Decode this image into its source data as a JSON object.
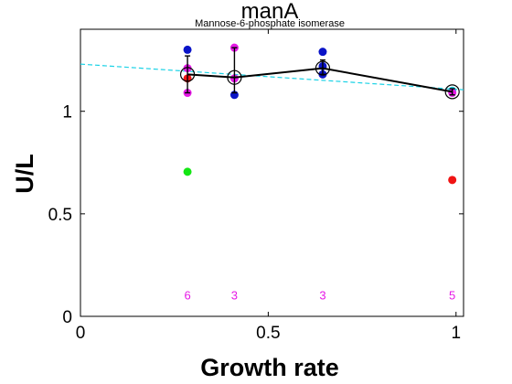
{
  "chart_data": {
    "type": "scatter",
    "title": "manA",
    "subtitle": "Mannose-6-phosphate isomerase",
    "xlabel": "Growth rate",
    "ylabel": "U/L",
    "xlim": [
      0,
      1.02
    ],
    "ylim": [
      0,
      1.4
    ],
    "xticks": [
      0,
      0.5,
      1
    ],
    "xtick_labels": [
      "0",
      "0.5",
      "1"
    ],
    "yticks": [
      0,
      0.5,
      1
    ],
    "ytick_labels": [
      "0",
      "0.5",
      "1"
    ],
    "grid": false,
    "colors": {
      "blue": "#0a14c8",
      "magenta": "#e619e6",
      "red": "#f01414",
      "green": "#14e614",
      "cyan": "#19d2e6",
      "mean_line": "#000000",
      "fit_line": "#19d2e6",
      "count": "#e619e6"
    },
    "replicates": [
      {
        "x": 0.285,
        "y": 1.3,
        "color": "blue"
      },
      {
        "x": 0.285,
        "y": 1.21,
        "color": "magenta"
      },
      {
        "x": 0.285,
        "y": 1.16,
        "color": "red"
      },
      {
        "x": 0.285,
        "y": 1.09,
        "color": "magenta"
      },
      {
        "x": 0.41,
        "y": 1.31,
        "color": "magenta"
      },
      {
        "x": 0.41,
        "y": 1.16,
        "color": "magenta"
      },
      {
        "x": 0.41,
        "y": 1.08,
        "color": "blue"
      },
      {
        "x": 0.645,
        "y": 1.29,
        "color": "blue"
      },
      {
        "x": 0.645,
        "y": 1.22,
        "color": "blue"
      },
      {
        "x": 0.645,
        "y": 1.18,
        "color": "blue"
      },
      {
        "x": 0.99,
        "y": 1.1,
        "color": "cyan"
      },
      {
        "x": 0.99,
        "y": 1.09,
        "color": "magenta"
      }
    ],
    "outliers": [
      {
        "x": 0.285,
        "y": 0.705,
        "color": "green"
      },
      {
        "x": 0.99,
        "y": 0.665,
        "color": "red"
      }
    ],
    "means": [
      {
        "x": 0.285,
        "y": 1.18,
        "err_low": 1.09,
        "err_high": 1.27
      },
      {
        "x": 0.41,
        "y": 1.165,
        "err_low": 1.09,
        "err_high": 1.31
      },
      {
        "x": 0.645,
        "y": 1.21,
        "err_low": 1.18,
        "err_high": 1.25
      },
      {
        "x": 0.99,
        "y": 1.095,
        "err_low": 1.08,
        "err_high": 1.11
      }
    ],
    "fit_line": {
      "x": [
        0,
        1.02
      ],
      "y": [
        1.23,
        1.105
      ]
    },
    "counts": [
      {
        "x": 0.285,
        "label": "6"
      },
      {
        "x": 0.41,
        "label": "3"
      },
      {
        "x": 0.645,
        "label": "3"
      },
      {
        "x": 0.99,
        "label": "5"
      }
    ],
    "count_y": 0.1
  }
}
